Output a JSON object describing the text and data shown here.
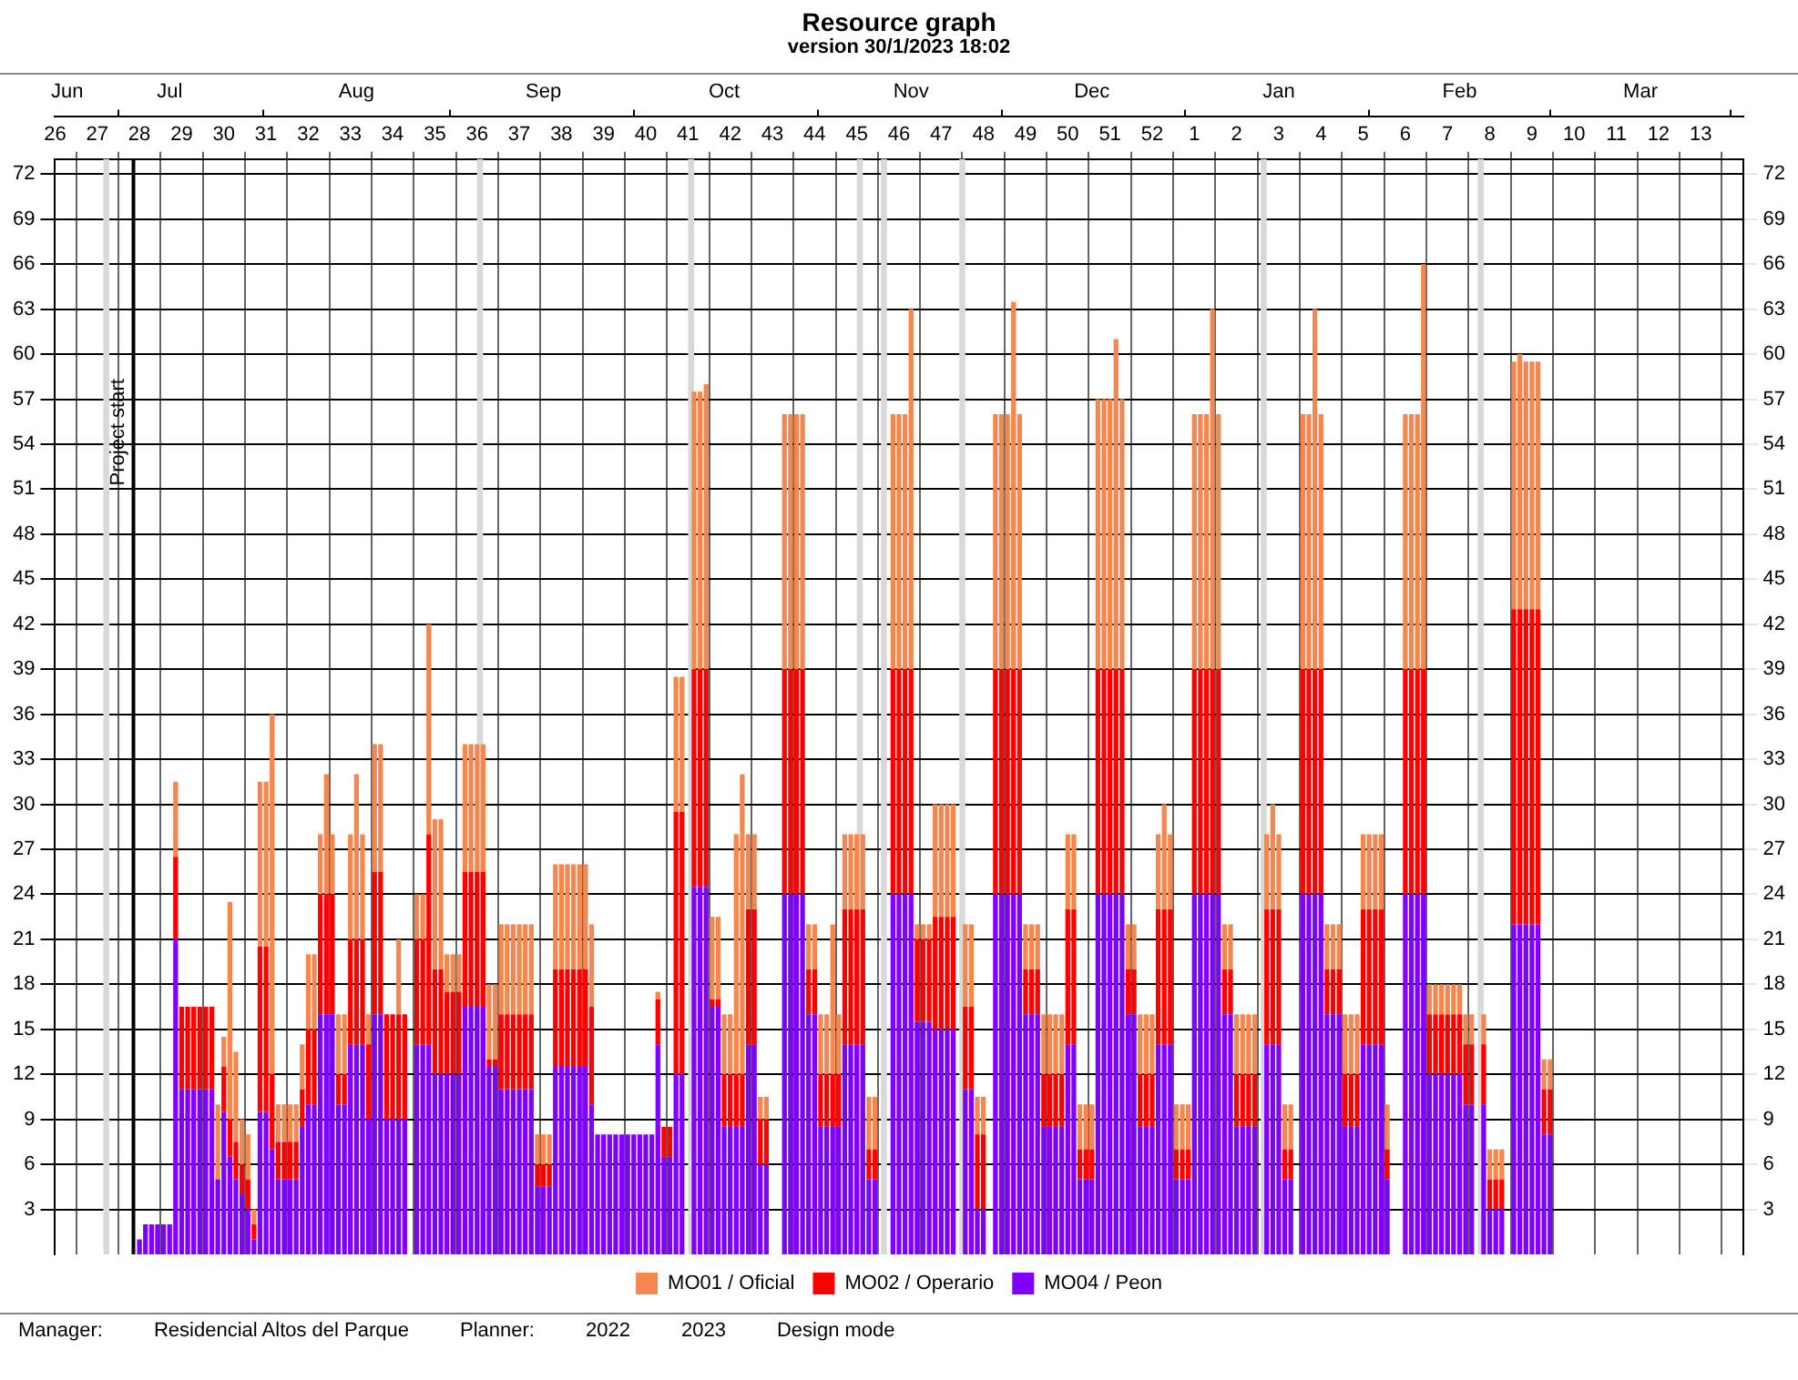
{
  "chart_data": {
    "type": "bar",
    "title": "Resource graph",
    "subtitle": "version 30/1/2023 18:02",
    "annotations": [
      "Manager:",
      "Residencial Altos del Parque",
      "Planner:",
      "2022",
      "2023",
      "Design mode"
    ],
    "stacked": true,
    "grid": true,
    "legend": "bottom",
    "x": [
      "2022-07-11",
      "2022-07-12",
      "2022-07-13",
      "2022-07-14",
      "2022-07-15",
      "2022-07-16",
      "2022-07-17",
      "2022-07-18",
      "2022-07-19",
      "2022-07-20",
      "2022-07-21",
      "2022-07-22",
      "2022-07-23",
      "2022-07-24",
      "2022-07-25",
      "2022-07-26",
      "2022-07-27",
      "2022-07-28",
      "2022-07-29",
      "2022-07-30",
      "2022-07-31",
      "2022-08-01",
      "2022-08-02",
      "2022-08-03",
      "2022-08-04",
      "2022-08-05",
      "2022-08-06",
      "2022-08-07",
      "2022-08-08",
      "2022-08-09",
      "2022-08-10",
      "2022-08-11",
      "2022-08-12",
      "2022-08-13",
      "2022-08-14",
      "2022-08-15",
      "2022-08-16",
      "2022-08-17",
      "2022-08-18",
      "2022-08-19",
      "2022-08-20",
      "2022-08-21",
      "2022-08-22",
      "2022-08-23",
      "2022-08-24",
      "2022-08-25",
      "2022-08-26",
      "2022-08-27",
      "2022-08-28",
      "2022-08-29",
      "2022-08-30",
      "2022-08-31",
      "2022-09-01",
      "2022-09-02",
      "2022-09-03",
      "2022-09-04",
      "2022-09-05",
      "2022-09-06",
      "2022-09-07",
      "2022-09-08",
      "2022-09-09",
      "2022-09-10",
      "2022-09-11",
      "2022-09-12",
      "2022-09-13",
      "2022-09-14",
      "2022-09-15",
      "2022-09-16",
      "2022-09-17",
      "2022-09-18",
      "2022-09-19",
      "2022-09-20",
      "2022-09-21",
      "2022-09-22",
      "2022-09-23",
      "2022-09-24",
      "2022-09-25",
      "2022-09-26",
      "2022-09-27",
      "2022-09-28",
      "2022-09-29",
      "2022-09-30",
      "2022-10-01",
      "2022-10-02",
      "2022-10-03",
      "2022-10-04",
      "2022-10-05",
      "2022-10-06",
      "2022-10-07",
      "2022-10-08",
      "2022-10-09",
      "2022-10-10",
      "2022-10-11",
      "2022-10-12",
      "2022-10-13",
      "2022-10-14",
      "2022-10-15",
      "2022-10-16",
      "2022-10-17",
      "2022-10-18",
      "2022-10-19",
      "2022-10-20",
      "2022-10-21",
      "2022-10-22",
      "2022-10-23",
      "2022-10-24",
      "2022-10-25",
      "2022-10-26",
      "2022-10-27",
      "2022-10-28",
      "2022-10-29",
      "2022-10-30",
      "2022-10-31",
      "2022-11-01",
      "2022-11-02",
      "2022-11-03",
      "2022-11-04",
      "2022-11-05",
      "2022-11-06",
      "2022-11-07",
      "2022-11-08",
      "2022-11-09",
      "2022-11-10",
      "2022-11-11",
      "2022-11-12",
      "2022-11-13",
      "2022-11-14",
      "2022-11-15",
      "2022-11-16",
      "2022-11-17",
      "2022-11-18",
      "2022-11-19",
      "2022-11-20",
      "2022-11-21",
      "2022-11-22",
      "2022-11-23",
      "2022-11-24",
      "2022-11-25",
      "2022-11-26",
      "2022-11-27",
      "2022-11-28",
      "2022-11-29",
      "2022-11-30",
      "2022-12-01",
      "2022-12-02",
      "2022-12-03",
      "2022-12-04",
      "2022-12-05",
      "2022-12-06",
      "2022-12-07",
      "2022-12-08",
      "2022-12-09",
      "2022-12-10",
      "2022-12-11",
      "2022-12-12",
      "2022-12-13",
      "2022-12-14",
      "2022-12-15",
      "2022-12-16",
      "2022-12-17",
      "2022-12-18",
      "2022-12-19",
      "2022-12-20",
      "2022-12-21",
      "2022-12-22",
      "2022-12-23",
      "2022-12-24",
      "2022-12-25",
      "2022-12-26",
      "2022-12-27",
      "2022-12-28",
      "2022-12-29",
      "2022-12-30",
      "2022-12-31",
      "2023-01-01",
      "2023-01-02",
      "2023-01-03",
      "2023-01-04",
      "2023-01-05",
      "2023-01-06",
      "2023-01-07",
      "2023-01-08",
      "2023-01-09",
      "2023-01-10",
      "2023-01-11",
      "2023-01-12",
      "2023-01-13",
      "2023-01-14",
      "2023-01-15",
      "2023-01-16",
      "2023-01-17",
      "2023-01-18",
      "2023-01-19",
      "2023-01-20",
      "2023-01-21",
      "2023-01-22",
      "2023-01-23",
      "2023-01-24",
      "2023-01-25",
      "2023-01-26",
      "2023-01-27",
      "2023-01-28",
      "2023-01-29",
      "2023-01-30",
      "2023-01-31",
      "2023-02-01",
      "2023-02-02",
      "2023-02-03",
      "2023-02-04",
      "2023-02-05",
      "2023-02-06",
      "2023-02-07",
      "2023-02-08",
      "2023-02-09",
      "2023-02-10",
      "2023-02-11",
      "2023-02-12",
      "2023-02-13",
      "2023-02-14",
      "2023-02-15",
      "2023-02-16",
      "2023-02-17",
      "2023-02-18",
      "2023-02-19",
      "2023-02-20",
      "2023-02-21",
      "2023-02-22",
      "2023-02-23",
      "2023-02-24",
      "2023-02-25",
      "2023-02-26",
      "2023-02-27",
      "2023-02-28",
      "2023-03-01",
      "2023-03-02"
    ],
    "xlim": [
      "2022-06-27",
      "2023-04-03"
    ],
    "xticks": [
      {
        "value": "2022-06-27",
        "label": "26"
      },
      {
        "value": "2022-07-04",
        "label": "27"
      },
      {
        "value": "2022-07-11",
        "label": "28"
      },
      {
        "value": "2022-07-18",
        "label": "29"
      },
      {
        "value": "2022-07-25",
        "label": "30"
      },
      {
        "value": "2022-08-01",
        "label": "31"
      },
      {
        "value": "2022-08-08",
        "label": "32"
      },
      {
        "value": "2022-08-15",
        "label": "33"
      },
      {
        "value": "2022-08-22",
        "label": "34"
      },
      {
        "value": "2022-08-29",
        "label": "35"
      },
      {
        "value": "2022-09-05",
        "label": "36"
      },
      {
        "value": "2022-09-12",
        "label": "37"
      },
      {
        "value": "2022-09-19",
        "label": "38"
      },
      {
        "value": "2022-09-26",
        "label": "39"
      },
      {
        "value": "2022-10-03",
        "label": "40"
      },
      {
        "value": "2022-10-10",
        "label": "41"
      },
      {
        "value": "2022-10-17",
        "label": "42"
      },
      {
        "value": "2022-10-24",
        "label": "43"
      },
      {
        "value": "2022-10-31",
        "label": "44"
      },
      {
        "value": "2022-11-07",
        "label": "45"
      },
      {
        "value": "2022-11-14",
        "label": "46"
      },
      {
        "value": "2022-11-21",
        "label": "47"
      },
      {
        "value": "2022-11-28",
        "label": "48"
      },
      {
        "value": "2022-12-05",
        "label": "49"
      },
      {
        "value": "2022-12-12",
        "label": "50"
      },
      {
        "value": "2022-12-19",
        "label": "51"
      },
      {
        "value": "2022-12-26",
        "label": "52"
      },
      {
        "value": "2023-01-02",
        "label": "1"
      },
      {
        "value": "2023-01-09",
        "label": "2"
      },
      {
        "value": "2023-01-16",
        "label": "3"
      },
      {
        "value": "2023-01-23",
        "label": "4"
      },
      {
        "value": "2023-01-30",
        "label": "5"
      },
      {
        "value": "2023-02-06",
        "label": "6"
      },
      {
        "value": "2023-02-13",
        "label": "7"
      },
      {
        "value": "2023-02-20",
        "label": "8"
      },
      {
        "value": "2023-02-27",
        "label": "9"
      },
      {
        "value": "2023-03-06",
        "label": "10"
      },
      {
        "value": "2023-03-13",
        "label": "11"
      },
      {
        "value": "2023-03-20",
        "label": "12"
      },
      {
        "value": "2023-03-27",
        "label": "13"
      }
    ],
    "x2lim": [
      "2022-06-27",
      "2023-04-03"
    ],
    "x2ticks": [
      {
        "value": "2022-06-29",
        "label": "Jun"
      },
      {
        "value": "2022-07-16",
        "label": "Jul"
      },
      {
        "value": "2022-08-16",
        "label": "Aug"
      },
      {
        "value": "2022-09-16",
        "label": "Sep"
      },
      {
        "value": "2022-10-16",
        "label": "Oct"
      },
      {
        "value": "2022-11-16",
        "label": "Nov"
      },
      {
        "value": "2022-12-16",
        "label": "Dec"
      },
      {
        "value": "2023-01-16",
        "label": "Jan"
      },
      {
        "value": "2023-02-15",
        "label": "Feb"
      },
      {
        "value": "2023-03-17",
        "label": "Mar"
      }
    ],
    "ylim": [
      0,
      73
    ],
    "yticks": [
      3,
      6,
      9,
      12,
      15,
      18,
      21,
      24,
      27,
      30,
      33,
      36,
      39,
      42,
      45,
      48,
      51,
      54,
      57,
      60,
      63,
      66,
      69,
      72
    ],
    "y2lim": [
      0,
      73
    ],
    "y2ticks": [
      3,
      6,
      9,
      12,
      15,
      18,
      21,
      24,
      27,
      30,
      33,
      36,
      39,
      42,
      45,
      48,
      51,
      54,
      57,
      60,
      63,
      66,
      69,
      72
    ],
    "ref_lines": [
      {
        "axis": "x",
        "value": "2022-07-10",
        "label": "Project start",
        "color": "#000000"
      }
    ],
    "bands": [
      {
        "axis": "x",
        "from": "2022-07-05",
        "to": "2022-07-06",
        "color": "#d9d9d9"
      },
      {
        "axis": "x",
        "from": "2022-09-05",
        "to": "2022-09-06",
        "color": "#d9d9d9"
      },
      {
        "axis": "x",
        "from": "2022-10-10",
        "to": "2022-10-11",
        "color": "#d9d9d9"
      },
      {
        "axis": "x",
        "from": "2022-11-07",
        "to": "2022-11-08",
        "color": "#d9d9d9"
      },
      {
        "axis": "x",
        "from": "2022-11-11",
        "to": "2022-11-12",
        "color": "#d9d9d9"
      },
      {
        "axis": "x",
        "from": "2022-11-24",
        "to": "2022-11-25",
        "color": "#d9d9d9"
      },
      {
        "axis": "x",
        "from": "2023-01-13",
        "to": "2023-01-14",
        "color": "#d9d9d9"
      },
      {
        "axis": "x",
        "from": "2023-02-18",
        "to": "2023-02-19",
        "color": "#d9d9d9"
      }
    ],
    "series": [
      {
        "name": "MO04 / Peon",
        "color": "#7f00ff",
        "values": [
          1,
          2,
          2,
          2,
          2,
          2,
          21,
          11,
          11,
          11,
          11,
          11,
          11,
          5,
          9.5,
          6.5,
          5,
          4,
          3,
          1,
          9.5,
          9.5,
          7,
          5,
          5,
          5,
          5,
          8.5,
          10,
          10,
          16,
          16,
          16,
          10,
          10,
          14,
          14,
          14,
          9,
          16,
          16,
          9,
          9,
          9,
          9,
          0,
          14,
          14,
          14,
          12,
          12,
          12,
          12,
          12,
          16.5,
          16.5,
          16.5,
          16.5,
          12.5,
          12.5,
          11,
          11,
          11,
          11,
          11,
          11,
          4.5,
          4.5,
          4.5,
          12.5,
          12.5,
          12.5,
          12.5,
          12.5,
          12.5,
          10,
          8,
          8,
          8,
          8,
          8,
          8,
          8,
          8,
          8,
          8,
          14,
          6.5,
          6.5,
          12,
          12,
          0,
          24.5,
          24.5,
          24.5,
          16.5,
          16.5,
          8.5,
          8.5,
          8.5,
          8.5,
          14,
          14,
          6,
          6,
          0,
          0,
          24,
          24,
          24,
          24,
          16,
          16,
          8.5,
          8.5,
          8.5,
          8.5,
          14,
          14,
          14,
          14,
          5,
          5,
          0,
          0,
          24,
          24,
          24,
          24,
          15.5,
          15.5,
          15.5,
          15,
          15,
          15,
          15,
          0,
          11,
          11,
          3,
          3,
          0,
          24,
          24,
          24,
          24,
          24,
          16,
          16,
          16,
          8.5,
          8.5,
          8.5,
          8.5,
          14,
          14,
          5,
          5,
          5,
          24,
          24,
          24,
          24,
          24,
          16,
          16,
          8.5,
          8.5,
          8.5,
          14,
          14,
          14,
          5,
          5,
          5,
          24,
          24,
          24,
          24,
          24,
          16,
          16,
          8.5,
          8.5,
          8.5,
          8.5,
          0,
          14,
          14,
          14,
          5,
          5,
          0,
          24,
          24,
          24,
          24,
          16,
          16,
          16,
          8.5,
          8.5,
          8.5,
          14,
          14,
          14,
          14,
          5,
          0,
          0,
          24,
          24,
          24,
          24,
          12,
          12,
          12,
          12,
          12,
          12,
          10,
          10,
          0,
          10,
          3,
          3,
          3,
          0,
          22,
          22,
          22,
          22,
          22,
          8,
          8
        ]
      },
      {
        "name": "MO02 / Operario",
        "color": "#ff0000",
        "values": [
          0,
          0,
          0,
          0,
          0,
          0,
          5.5,
          5.5,
          5.5,
          5.5,
          5.5,
          5.5,
          5.5,
          0,
          3,
          2.5,
          2.5,
          2,
          2,
          1,
          11,
          11,
          5,
          2.5,
          2.5,
          2.5,
          2.5,
          2.5,
          5,
          5,
          8,
          8,
          8,
          2,
          2,
          7,
          7,
          7,
          5,
          9.5,
          9.5,
          7,
          7,
          7,
          7,
          0,
          7,
          7,
          14,
          7,
          7,
          5.5,
          5.5,
          5.5,
          9,
          9,
          9,
          9,
          0.5,
          0.5,
          5,
          5,
          5,
          5,
          5,
          5,
          1.5,
          1.5,
          1.5,
          6.5,
          6.5,
          6.5,
          6.5,
          6.5,
          6.5,
          6.5,
          0,
          0,
          0,
          0,
          0,
          0,
          0,
          0,
          0,
          0,
          3,
          2,
          2,
          17.5,
          17.5,
          0,
          14.5,
          14.5,
          14.5,
          0.5,
          0.5,
          3.5,
          3.5,
          3.5,
          3.5,
          9,
          9,
          3,
          3,
          0,
          0,
          15,
          15,
          15,
          15,
          3,
          3,
          3.5,
          3.5,
          3.5,
          3.5,
          9,
          9,
          9,
          9,
          2,
          2,
          0,
          0,
          15,
          15,
          15,
          15,
          5.5,
          5.5,
          5.5,
          7.5,
          7.5,
          7.5,
          7.5,
          0,
          5.5,
          5.5,
          5,
          5,
          0,
          15,
          15,
          15,
          15,
          15,
          3,
          3,
          3,
          3.5,
          3.5,
          3.5,
          3.5,
          9,
          9,
          2,
          2,
          2,
          15,
          15,
          15,
          15,
          15,
          3,
          3,
          3.5,
          3.5,
          3.5,
          9,
          9,
          9,
          2,
          2,
          2,
          15,
          15,
          15,
          15,
          15,
          3,
          3,
          3.5,
          3.5,
          3.5,
          3.5,
          0,
          9,
          9,
          9,
          2,
          2,
          0,
          15,
          15,
          15,
          15,
          3,
          3,
          3,
          3.5,
          3.5,
          3.5,
          9,
          9,
          9,
          9,
          2,
          0,
          0,
          15,
          15,
          15,
          15,
          4,
          4,
          4,
          4,
          4,
          4,
          4,
          4,
          0,
          4,
          2,
          2,
          2,
          0,
          21,
          21,
          21,
          21,
          21,
          3,
          3
        ]
      },
      {
        "name": "MO01 / Oficial",
        "color": "#f4874f",
        "values": [
          0,
          0,
          0,
          0,
          0,
          0,
          5,
          0,
          0,
          0,
          0,
          0,
          0,
          5,
          2,
          14.5,
          6,
          3,
          3,
          1,
          11,
          11,
          24,
          2.5,
          2.5,
          2.5,
          2.5,
          3,
          5,
          5,
          4,
          8,
          4,
          4,
          4,
          7,
          11,
          7,
          2,
          8.5,
          8.5,
          0,
          0,
          5,
          0,
          0,
          3,
          3,
          14,
          10,
          10,
          2.5,
          2.5,
          2.5,
          8.5,
          8.5,
          8.5,
          8.5,
          5,
          5,
          6,
          6,
          6,
          6,
          6,
          6,
          2,
          2,
          2,
          7,
          7,
          7,
          7,
          7,
          7,
          5.5,
          0,
          0,
          0,
          0,
          0,
          0,
          0,
          0,
          0,
          0,
          0.5,
          0,
          0,
          9,
          9,
          0,
          18.5,
          18.5,
          19,
          5.5,
          5.5,
          4,
          4,
          16,
          20,
          5,
          5,
          1.5,
          1.5,
          0,
          0,
          17,
          17,
          17,
          17,
          3,
          3,
          4,
          4,
          10,
          4,
          5,
          5,
          5,
          5,
          3.5,
          3.5,
          0,
          0,
          17,
          17,
          17,
          24,
          1,
          1,
          1,
          7.5,
          7.5,
          7.5,
          7.5,
          0,
          5.5,
          5.5,
          2.5,
          2.5,
          0,
          17,
          17,
          17,
          24.5,
          17,
          3,
          3,
          3,
          4,
          4,
          4,
          4,
          5,
          5,
          3,
          3,
          3,
          18,
          18,
          18,
          22,
          18,
          3,
          3,
          4,
          4,
          4,
          5,
          7,
          5,
          3,
          3,
          3,
          17,
          17,
          17,
          24,
          17,
          3,
          3,
          4,
          4,
          4,
          4,
          0,
          5,
          7,
          5,
          3,
          3,
          0,
          17,
          17,
          24,
          17,
          3,
          3,
          3,
          4,
          4,
          4,
          5,
          5,
          5,
          5,
          3,
          0,
          0,
          17,
          17,
          17,
          27,
          2,
          2,
          2,
          2,
          2,
          2,
          2,
          2,
          0,
          2,
          2,
          2,
          2,
          0,
          16.5,
          17,
          16.5,
          16.5,
          16.5,
          2,
          2
        ]
      }
    ]
  }
}
